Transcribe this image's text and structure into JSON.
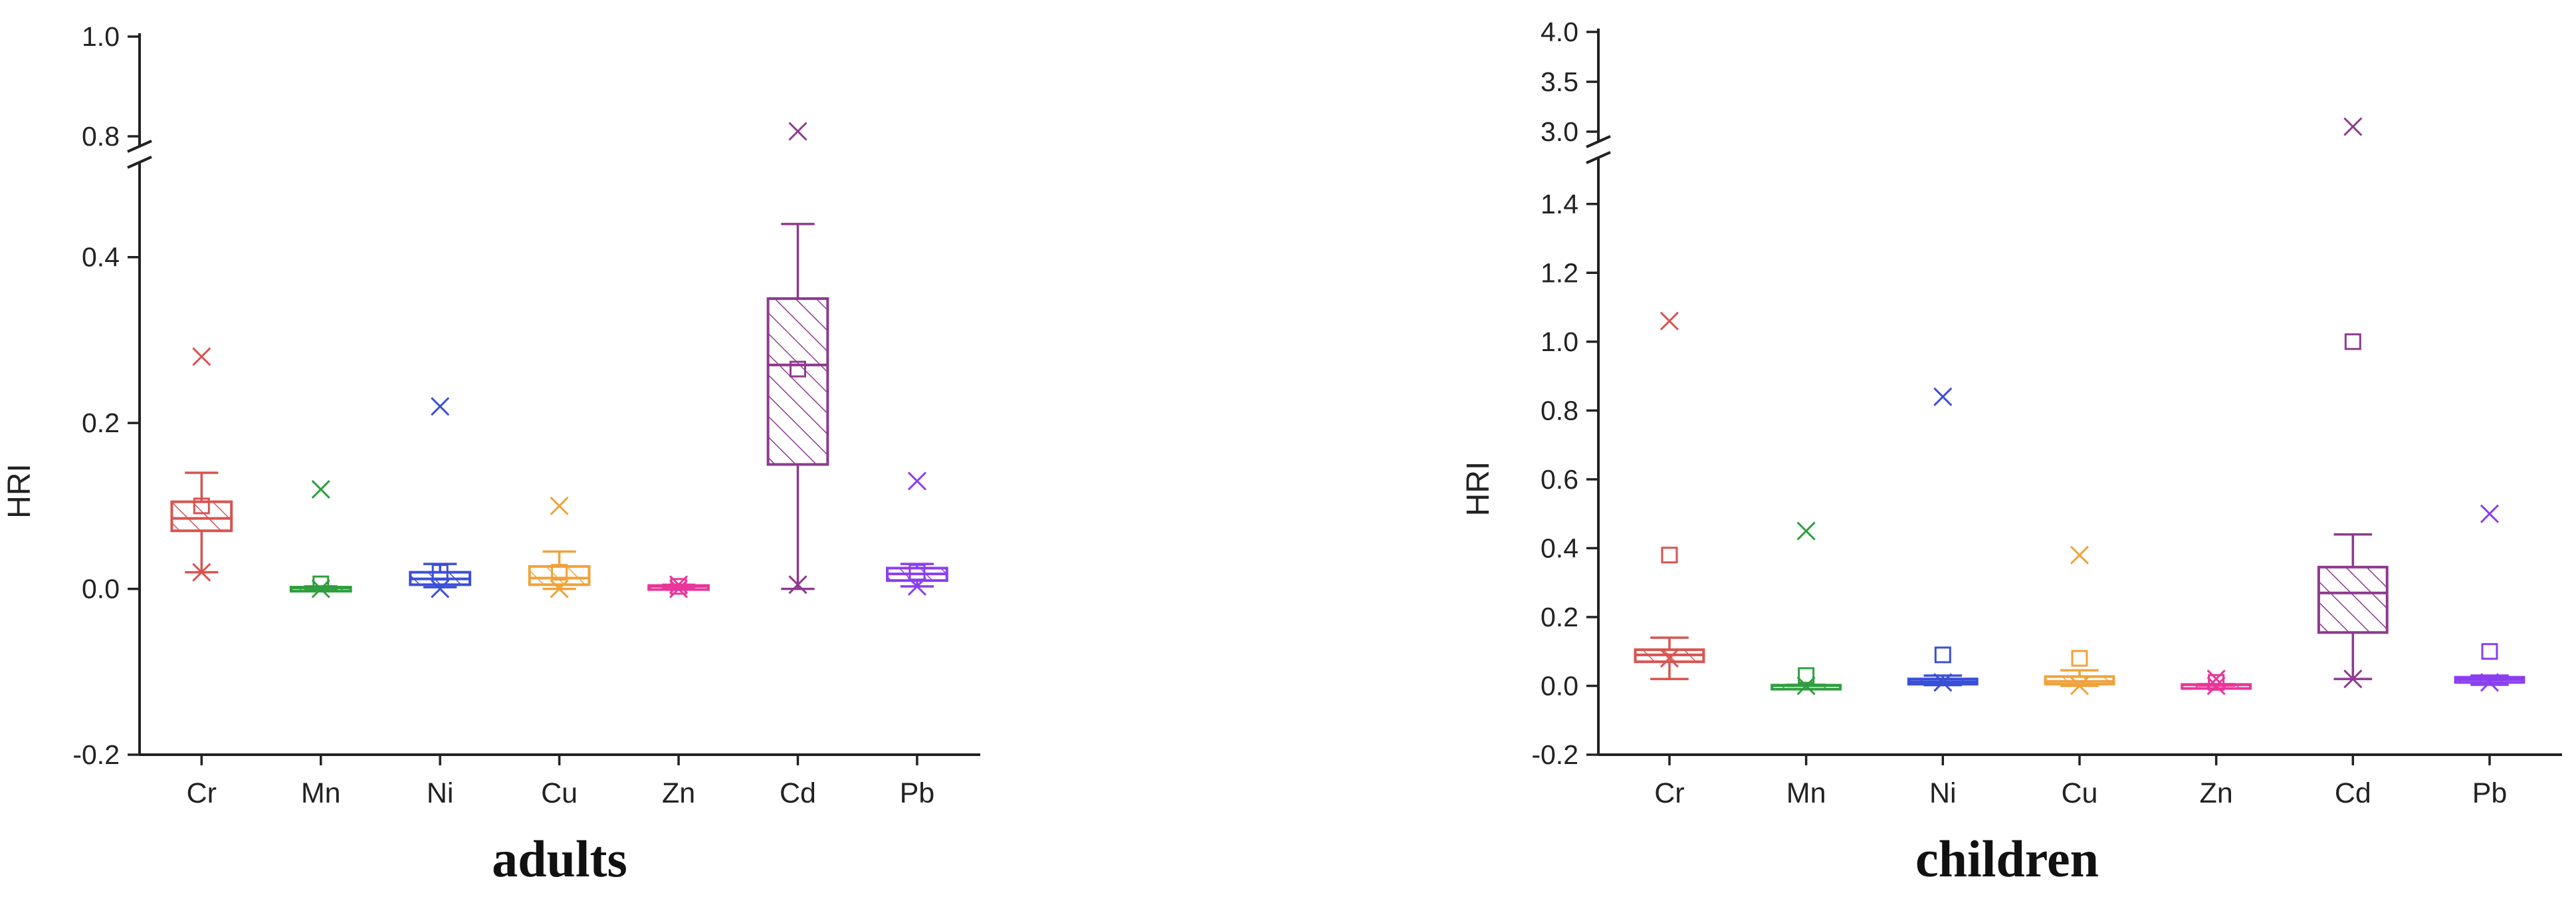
{
  "chart_data": [
    {
      "type": "box",
      "caption": "adults",
      "ylabel": "HRI",
      "categories": [
        "Cr",
        "Mn",
        "Ni",
        "Cu",
        "Zn",
        "Cd",
        "Pb"
      ],
      "y_axis": {
        "lower_range": [
          -0.2,
          0.5
        ],
        "upper_range": [
          0.8,
          1.0
        ],
        "lower_ticks": [
          "-0.2",
          "0.0",
          "0.2",
          "0.4"
        ],
        "upper_ticks": [
          "0.8",
          "1.0"
        ],
        "break_between": [
          0.5,
          0.8
        ]
      },
      "colors": [
        "#d9534f",
        "#2e9e3e",
        "#3a4fd8",
        "#f0a23a",
        "#e8369a",
        "#8e3a8e",
        "#8a3ef0"
      ],
      "series": [
        {
          "category": "Cr",
          "q1": 0.07,
          "median": 0.085,
          "q3": 0.105,
          "whisker_low": 0.02,
          "whisker_high": 0.14,
          "mean": 0.1,
          "max": 0.28,
          "min": 0.02
        },
        {
          "category": "Mn",
          "q1": 0.0,
          "median": 0.001,
          "q3": 0.002,
          "whisker_low": 0.0,
          "whisker_high": 0.003,
          "mean": 0.006,
          "max": 0.12,
          "min": 0.0
        },
        {
          "category": "Ni",
          "q1": 0.005,
          "median": 0.012,
          "q3": 0.02,
          "whisker_low": 0.002,
          "whisker_high": 0.03,
          "mean": 0.02,
          "max": 0.22,
          "min": 0.0
        },
        {
          "category": "Cu",
          "q1": 0.005,
          "median": 0.013,
          "q3": 0.027,
          "whisker_low": 0.0,
          "whisker_high": 0.045,
          "mean": 0.02,
          "max": 0.1,
          "min": 0.0
        },
        {
          "category": "Zn",
          "q1": 0.002,
          "median": 0.003,
          "q3": 0.004,
          "whisker_low": 0.001,
          "whisker_high": 0.005,
          "mean": 0.003,
          "max": 0.005,
          "min": 0.0
        },
        {
          "category": "Cd",
          "q1": 0.15,
          "median": 0.27,
          "q3": 0.35,
          "whisker_low": 0.0,
          "whisker_high": 0.44,
          "mean": 0.265,
          "max": 0.81,
          "min": 0.005
        },
        {
          "category": "Pb",
          "q1": 0.01,
          "median": 0.018,
          "q3": 0.025,
          "whisker_low": 0.003,
          "whisker_high": 0.03,
          "mean": 0.02,
          "max": 0.13,
          "min": 0.003
        }
      ]
    },
    {
      "type": "box",
      "caption": "children",
      "ylabel": "HRI",
      "categories": [
        "Cr",
        "Mn",
        "Ni",
        "Cu",
        "Zn",
        "Cd",
        "Pb"
      ],
      "y_axis": {
        "lower_range": [
          -0.2,
          1.5
        ],
        "upper_range": [
          3.0,
          4.0
        ],
        "lower_ticks": [
          "-0.2",
          "0.0",
          "0.2",
          "0.4",
          "0.6",
          "0.8",
          "1.0",
          "1.2",
          "1.4"
        ],
        "upper_ticks": [
          "3.0",
          "3.5",
          "4.0"
        ],
        "break_between": [
          1.5,
          3.0
        ]
      },
      "colors": [
        "#d9534f",
        "#2e9e3e",
        "#3a4fd8",
        "#f0a23a",
        "#e8369a",
        "#8e3a8e",
        "#8a3ef0"
      ],
      "series": [
        {
          "category": "Cr",
          "q1": 0.07,
          "median": 0.09,
          "q3": 0.105,
          "whisker_low": 0.02,
          "whisker_high": 0.14,
          "mean": 0.38,
          "max": 1.06,
          "min": 0.08
        },
        {
          "category": "Mn",
          "q1": 0.0,
          "median": 0.001,
          "q3": 0.002,
          "whisker_low": 0.0,
          "whisker_high": 0.003,
          "mean": 0.03,
          "max": 0.45,
          "min": 0.0
        },
        {
          "category": "Ni",
          "q1": 0.005,
          "median": 0.012,
          "q3": 0.02,
          "whisker_low": 0.002,
          "whisker_high": 0.03,
          "mean": 0.09,
          "max": 0.84,
          "min": 0.01
        },
        {
          "category": "Cu",
          "q1": 0.005,
          "median": 0.013,
          "q3": 0.027,
          "whisker_low": 0.0,
          "whisker_high": 0.045,
          "mean": 0.08,
          "max": 0.38,
          "min": 0.0
        },
        {
          "category": "Zn",
          "q1": 0.002,
          "median": 0.003,
          "q3": 0.004,
          "whisker_low": 0.001,
          "whisker_high": 0.005,
          "mean": 0.01,
          "max": 0.02,
          "min": 0.0
        },
        {
          "category": "Cd",
          "q1": 0.155,
          "median": 0.27,
          "q3": 0.345,
          "whisker_low": 0.02,
          "whisker_high": 0.44,
          "mean": 1.0,
          "max": 3.05,
          "min": 0.02
        },
        {
          "category": "Pb",
          "q1": 0.01,
          "median": 0.018,
          "q3": 0.025,
          "whisker_low": 0.003,
          "whisker_high": 0.03,
          "mean": 0.1,
          "max": 0.5,
          "min": 0.01
        }
      ]
    }
  ]
}
